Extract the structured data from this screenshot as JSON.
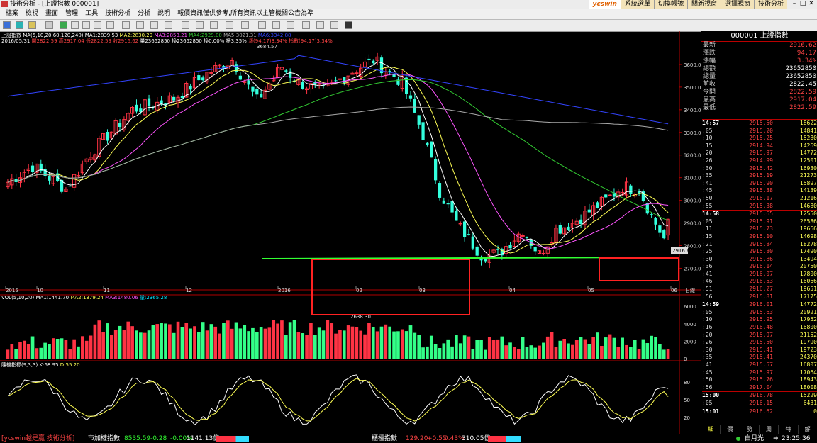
{
  "window": {
    "title": "技術分析 - [上證指數 000001]",
    "buttons": [
      "ycswin",
      "系統選單",
      "切換帳號",
      "關新視窗",
      "選擇視窗",
      "技術分析"
    ]
  },
  "menu": [
    "檔案",
    "檢視",
    "畫面",
    "管理",
    "工具",
    "技術分析",
    "分析",
    "說明",
    "報價資訊僅供參考,所有資訊以主管機關公告為準"
  ],
  "chart": {
    "ma_line": "上證指數 MA(5,10,20,60,120,240)",
    "ma_values": [
      {
        "label": "MA1:2839.53",
        "color": "#ffffff"
      },
      {
        "label": "MA2:2830.29",
        "color": "#ffff55"
      },
      {
        "label": "MA3:2853.21",
        "color": "#ff55ff"
      },
      {
        "label": "MA4:2929.00",
        "color": "#33cc33"
      },
      {
        "label": "MA5:3021.31",
        "color": "#aaaaaa"
      },
      {
        "label": "MA6:3342.88",
        "color": "#3344ff"
      }
    ],
    "date_line": "2016/05/31",
    "ohlc": [
      {
        "label": "開2822.59",
        "color": "#ff4444"
      },
      {
        "label": "高2917.04",
        "color": "#ff4444"
      },
      {
        "label": "低2822.59",
        "color": "#ff4444"
      },
      {
        "label": "收2916.62",
        "color": "#ff4444"
      },
      {
        "label": "量23652850",
        "color": "#ffffff"
      },
      {
        "label": "換23652850",
        "color": "#ffffff"
      },
      {
        "label": "換0.00%",
        "color": "#ffffff"
      },
      {
        "label": "振3.35%",
        "color": "#ffffff"
      },
      {
        "label": "漲(94.17)3.34%",
        "color": "#ff4444"
      },
      {
        "label": "指數(94.17)3.34%",
        "color": "#ff4444"
      }
    ],
    "price_axis": [
      "3600.0",
      "3500.0",
      "3400.0",
      "3300.0",
      "3200.0",
      "3100.0",
      "3000.0",
      "2900.0",
      "2800.0",
      "2700.0"
    ],
    "time_axis": [
      "2015",
      "10",
      "11",
      "12",
      "2016",
      "02",
      "03",
      "04",
      "05",
      "06"
    ],
    "time_axis_unit": "日線",
    "high_label": "3684.57",
    "low_label": "2638.30",
    "last_price_tag": "2916.62",
    "vol_info": [
      {
        "label": "VOL(5,10,20)",
        "color": "#ffffff"
      },
      {
        "label": "MA1:1441.70",
        "color": "#ffffff"
      },
      {
        "label": "MA2:1379.24",
        "color": "#ffff55"
      },
      {
        "label": "MA3:1480.06",
        "color": "#ff55ff"
      },
      {
        "label": "量:2365.28",
        "color": "#00e5ff"
      }
    ],
    "vol_axis": [
      "6000",
      "4000",
      "2000",
      "0"
    ],
    "kd_info": [
      {
        "label": "隨機指標(9,3,3)",
        "color": "#ffffff"
      },
      {
        "label": "K:68.95",
        "color": "#ffffff"
      },
      {
        "label": "D:55.20",
        "color": "#ffff55"
      }
    ],
    "kd_axis": [
      "80",
      "50",
      "20"
    ]
  },
  "quote_panel": {
    "title": "000001 上證指數",
    "rows": [
      {
        "label": "最新",
        "value": "2916.62",
        "color": "#ff4444"
      },
      {
        "label": "漲跌",
        "value": "94.17",
        "color": "#ff4444"
      },
      {
        "label": "漲幅",
        "value": "3.34%",
        "color": "#ff4444"
      },
      {
        "label": "總額",
        "value": "23652850",
        "color": "#ffffff"
      },
      {
        "label": "總量",
        "value": "23652850",
        "color": "#ffffff"
      },
      {
        "label": "前收",
        "value": "2822.45",
        "color": "#ffffff"
      },
      {
        "label": "今開",
        "value": "2822.59",
        "color": "#ff4444"
      },
      {
        "label": "最高",
        "value": "2917.04",
        "color": "#ff4444"
      },
      {
        "label": "最低",
        "value": "2822.59",
        "color": "#ff4444"
      }
    ],
    "ticks": [
      {
        "t": "14:57",
        "p": "2915.50",
        "v": "18622",
        "hour": true
      },
      {
        "t": ":05",
        "p": "2915.20",
        "v": "14841"
      },
      {
        "t": ":10",
        "p": "2915.25",
        "v": "15280"
      },
      {
        "t": ":15",
        "p": "2914.94",
        "v": "14269"
      },
      {
        "t": ":20",
        "p": "2915.97",
        "v": "14772"
      },
      {
        "t": ":26",
        "p": "2914.99",
        "v": "12501"
      },
      {
        "t": ":30",
        "p": "2915.42",
        "v": "16930"
      },
      {
        "t": ":35",
        "p": "2915.19",
        "v": "21273"
      },
      {
        "t": ":41",
        "p": "2915.90",
        "v": "15897"
      },
      {
        "t": ":45",
        "p": "2915.38",
        "v": "14139"
      },
      {
        "t": ":50",
        "p": "2916.17",
        "v": "21216"
      },
      {
        "t": ":55",
        "p": "2915.38",
        "v": "14680"
      },
      {
        "t": "14:58",
        "p": "2915.65",
        "v": "12550",
        "hour": true
      },
      {
        "t": ":05",
        "p": "2915.91",
        "v": "26586"
      },
      {
        "t": ":11",
        "p": "2915.73",
        "v": "19666"
      },
      {
        "t": ":15",
        "p": "2915.10",
        "v": "14698"
      },
      {
        "t": ":21",
        "p": "2915.84",
        "v": "18278"
      },
      {
        "t": ":25",
        "p": "2915.80",
        "v": "17490"
      },
      {
        "t": ":30",
        "p": "2915.86",
        "v": "13494"
      },
      {
        "t": ":36",
        "p": "2916.14",
        "v": "20750"
      },
      {
        "t": ":41",
        "p": "2916.07",
        "v": "17800"
      },
      {
        "t": ":46",
        "p": "2916.53",
        "v": "16066"
      },
      {
        "t": ":51",
        "p": "2916.27",
        "v": "19651"
      },
      {
        "t": ":56",
        "p": "2915.81",
        "v": "17175"
      },
      {
        "t": "14:59",
        "p": "2916.01",
        "v": "14772",
        "hour": true
      },
      {
        "t": ":05",
        "p": "2915.63",
        "v": "20921"
      },
      {
        "t": ":10",
        "p": "2915.95",
        "v": "17952"
      },
      {
        "t": ":16",
        "p": "2916.48",
        "v": "16800"
      },
      {
        "t": ":20",
        "p": "2915.97",
        "v": "21152"
      },
      {
        "t": ":26",
        "p": "2915.50",
        "v": "19790"
      },
      {
        "t": ":30",
        "p": "2915.41",
        "v": "19723"
      },
      {
        "t": ":35",
        "p": "2915.41",
        "v": "24370"
      },
      {
        "t": ":41",
        "p": "2915.57",
        "v": "16807"
      },
      {
        "t": ":45",
        "p": "2915.97",
        "v": "17064"
      },
      {
        "t": ":50",
        "p": "2915.76",
        "v": "18943"
      },
      {
        "t": ":56",
        "p": "2917.04",
        "v": "18008"
      },
      {
        "t": "15:00",
        "p": "2916.78",
        "v": "15229",
        "hour": true
      },
      {
        "t": ":05",
        "p": "2916.15",
        "v": "6431"
      },
      {
        "t": "15:01",
        "p": "2916.62",
        "v": "0",
        "hour": true
      }
    ],
    "tabs": [
      "細",
      "價",
      "勢",
      "周",
      "特",
      "解"
    ]
  },
  "status": {
    "brand": "[ycswin越是贏 技術分析]",
    "index1_name": "市加權指數",
    "index1_value": "8535.59",
    "index1_change": "-0.28",
    "index1_pct": "-0.00%",
    "index1_vol": "1141.13億",
    "index2_name": "櫃檯指數",
    "index2_value": "129.20",
    "index2_change": "+0.55",
    "index2_pct": "0.43%",
    "index2_vol": "310.05億",
    "user": "白月光",
    "clock": "23:25:36"
  },
  "colors": {
    "up": "#ff3344",
    "down": "#33ffdd",
    "frame": "#b00000",
    "support": "#33ff33"
  }
}
